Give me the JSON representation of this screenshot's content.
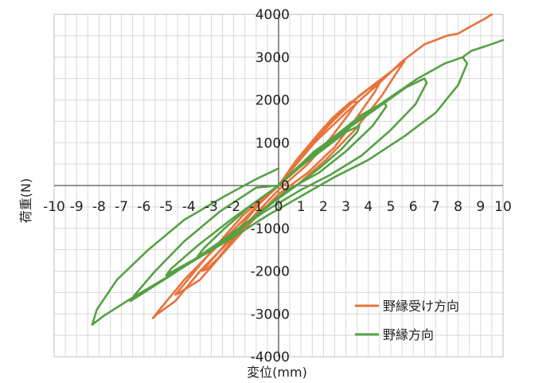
{
  "chart_data": {
    "type": "line",
    "title": "",
    "xlabel": "変位(mm)",
    "ylabel": "荷重(N)",
    "xlim": [
      -10,
      10
    ],
    "ylim": [
      -4000,
      4000
    ],
    "x_ticks": [
      "-10",
      "-9",
      "-8",
      "-7",
      "-6",
      "-5",
      "-4",
      "-3",
      "-2",
      "-1",
      "0",
      "1",
      "2",
      "3",
      "4",
      "5",
      "6",
      "7",
      "8",
      "9",
      "10"
    ],
    "y_ticks": [
      "4000",
      "3000",
      "2000",
      "1000",
      "0",
      "-1000",
      "-2000",
      "-3000",
      "-4000"
    ],
    "x_minor_step": 0.5,
    "y_minor_step": 500,
    "grid": true,
    "legend_position": "bottom-right",
    "series": [
      {
        "name": "野縁受け方向",
        "color": "#E8733A",
        "loops": [
          [
            [
              0,
              0
            ],
            [
              0.8,
              600
            ],
            [
              1.6,
              1100
            ],
            [
              2.4,
              1580
            ],
            [
              3.2,
              1950
            ],
            [
              3.5,
              1950
            ],
            [
              3.1,
              1650
            ],
            [
              2.3,
              1100
            ],
            [
              1.3,
              500
            ],
            [
              0,
              -100
            ],
            [
              -1.0,
              -650
            ],
            [
              -2.0,
              -1250
            ],
            [
              -2.7,
              -1700
            ],
            [
              -3.2,
              -1950
            ],
            [
              -3.4,
              -2000
            ],
            [
              -3.0,
              -1750
            ],
            [
              -2.0,
              -1150
            ],
            [
              -0.8,
              -400
            ],
            [
              0,
              0
            ]
          ],
          [
            [
              0,
              0
            ],
            [
              1.0,
              700
            ],
            [
              2.0,
              1350
            ],
            [
              3.0,
              1850
            ],
            [
              4.0,
              2250
            ],
            [
              4.5,
              2400
            ],
            [
              4.3,
              2200
            ],
            [
              3.5,
              1600
            ],
            [
              2.5,
              900
            ],
            [
              1.3,
              300
            ],
            [
              0,
              -200
            ],
            [
              -1.3,
              -900
            ],
            [
              -2.5,
              -1600
            ],
            [
              -3.5,
              -2200
            ],
            [
              -4.4,
              -2500
            ],
            [
              -4.6,
              -2550
            ],
            [
              -4.2,
              -2300
            ],
            [
              -3.1,
              -1600
            ],
            [
              -1.6,
              -700
            ],
            [
              0,
              0
            ]
          ],
          [
            [
              0,
              0
            ],
            [
              1.2,
              800
            ],
            [
              2.4,
              1500
            ],
            [
              3.6,
              2100
            ],
            [
              4.6,
              2500
            ],
            [
              5.6,
              2900
            ],
            [
              5.4,
              2750
            ],
            [
              4.6,
              2100
            ],
            [
              3.4,
              1300
            ],
            [
              2.1,
              600
            ],
            [
              0.8,
              0
            ],
            [
              -0.6,
              -500
            ],
            [
              -2.0,
              -1200
            ],
            [
              -3.5,
              -2000
            ],
            [
              -4.6,
              -2700
            ],
            [
              -5.4,
              -3000
            ],
            [
              -5.6,
              -3100
            ],
            [
              -5.3,
              -2900
            ],
            [
              -4.2,
              -2200
            ],
            [
              -2.7,
              -1400
            ],
            [
              -1.0,
              -500
            ],
            [
              0,
              0
            ]
          ],
          [
            [
              0,
              0
            ],
            [
              1.6,
              1000
            ],
            [
              3.0,
              1700
            ],
            [
              4.5,
              2400
            ],
            [
              5.5,
              2900
            ],
            [
              6.5,
              3300
            ],
            [
              7.5,
              3500
            ],
            [
              8.0,
              3550
            ],
            [
              8.5,
              3700
            ],
            [
              9.2,
              3900
            ],
            [
              9.5,
              4000
            ]
          ]
        ]
      },
      {
        "name": "野縁方向",
        "color": "#55A144",
        "loops": [
          [
            [
              0,
              0
            ],
            [
              1.0,
              450
            ],
            [
              2.0,
              850
            ],
            [
              3.0,
              1250
            ],
            [
              3.6,
              1400
            ],
            [
              3.5,
              1250
            ],
            [
              2.8,
              850
            ],
            [
              1.8,
              400
            ],
            [
              0.8,
              0
            ],
            [
              0,
              -300
            ],
            [
              -1.0,
              -700
            ],
            [
              -2.0,
              -1150
            ],
            [
              -3.0,
              -1500
            ],
            [
              -3.6,
              -1650
            ],
            [
              -3.3,
              -1450
            ],
            [
              -2.4,
              -1000
            ],
            [
              -1.2,
              -450
            ],
            [
              0,
              0
            ]
          ],
          [
            [
              0,
              0
            ],
            [
              1.2,
              600
            ],
            [
              2.5,
              1150
            ],
            [
              3.7,
              1650
            ],
            [
              4.7,
              1950
            ],
            [
              4.8,
              1850
            ],
            [
              4.2,
              1400
            ],
            [
              3.0,
              800
            ],
            [
              1.8,
              300
            ],
            [
              0.4,
              -100
            ],
            [
              -1.0,
              -700
            ],
            [
              -2.3,
              -1200
            ],
            [
              -3.5,
              -1650
            ],
            [
              -4.7,
              -2000
            ],
            [
              -5.0,
              -2100
            ],
            [
              -4.8,
              -1950
            ],
            [
              -3.6,
              -1400
            ],
            [
              -2.0,
              -750
            ],
            [
              0,
              0
            ]
          ],
          [
            [
              0,
              0
            ],
            [
              1.5,
              700
            ],
            [
              3.0,
              1300
            ],
            [
              4.5,
              1850
            ],
            [
              5.7,
              2300
            ],
            [
              6.5,
              2500
            ],
            [
              6.6,
              2400
            ],
            [
              6.1,
              1900
            ],
            [
              5.0,
              1300
            ],
            [
              3.7,
              700
            ],
            [
              2.3,
              250
            ],
            [
              1.0,
              -100
            ],
            [
              -0.6,
              -600
            ],
            [
              -2.0,
              -1100
            ],
            [
              -3.4,
              -1600
            ],
            [
              -4.8,
              -2100
            ],
            [
              -6.0,
              -2500
            ],
            [
              -6.6,
              -2700
            ],
            [
              -6.4,
              -2550
            ],
            [
              -5.5,
              -2000
            ],
            [
              -4.2,
              -1300
            ],
            [
              -2.6,
              -600
            ],
            [
              -1.0,
              -50
            ],
            [
              0,
              0
            ]
          ],
          [
            [
              0,
              0
            ],
            [
              1.6,
              800
            ],
            [
              3.2,
              1400
            ],
            [
              4.8,
              2000
            ],
            [
              6.2,
              2500
            ],
            [
              7.4,
              2850
            ],
            [
              8.2,
              3000
            ],
            [
              8.4,
              2850
            ],
            [
              8.0,
              2350
            ],
            [
              7.0,
              1700
            ],
            [
              5.6,
              1150
            ],
            [
              4.0,
              600
            ],
            [
              2.5,
              200
            ],
            [
              1.0,
              -250
            ],
            [
              -0.5,
              -700
            ],
            [
              -2.0,
              -1200
            ],
            [
              -3.6,
              -1700
            ],
            [
              -5.0,
              -2150
            ],
            [
              -6.6,
              -2650
            ],
            [
              -7.8,
              -3050
            ],
            [
              -8.3,
              -3250
            ],
            [
              -8.1,
              -2900
            ],
            [
              -7.2,
              -2200
            ],
            [
              -5.8,
              -1500
            ],
            [
              -4.2,
              -800
            ],
            [
              -2.4,
              -250
            ],
            [
              -1.0,
              150
            ],
            [
              0,
              400
            ]
          ],
          [
            [
              8.2,
              3000
            ],
            [
              8.6,
              3150
            ],
            [
              9.2,
              3250
            ],
            [
              10,
              3400
            ]
          ]
        ]
      }
    ]
  }
}
